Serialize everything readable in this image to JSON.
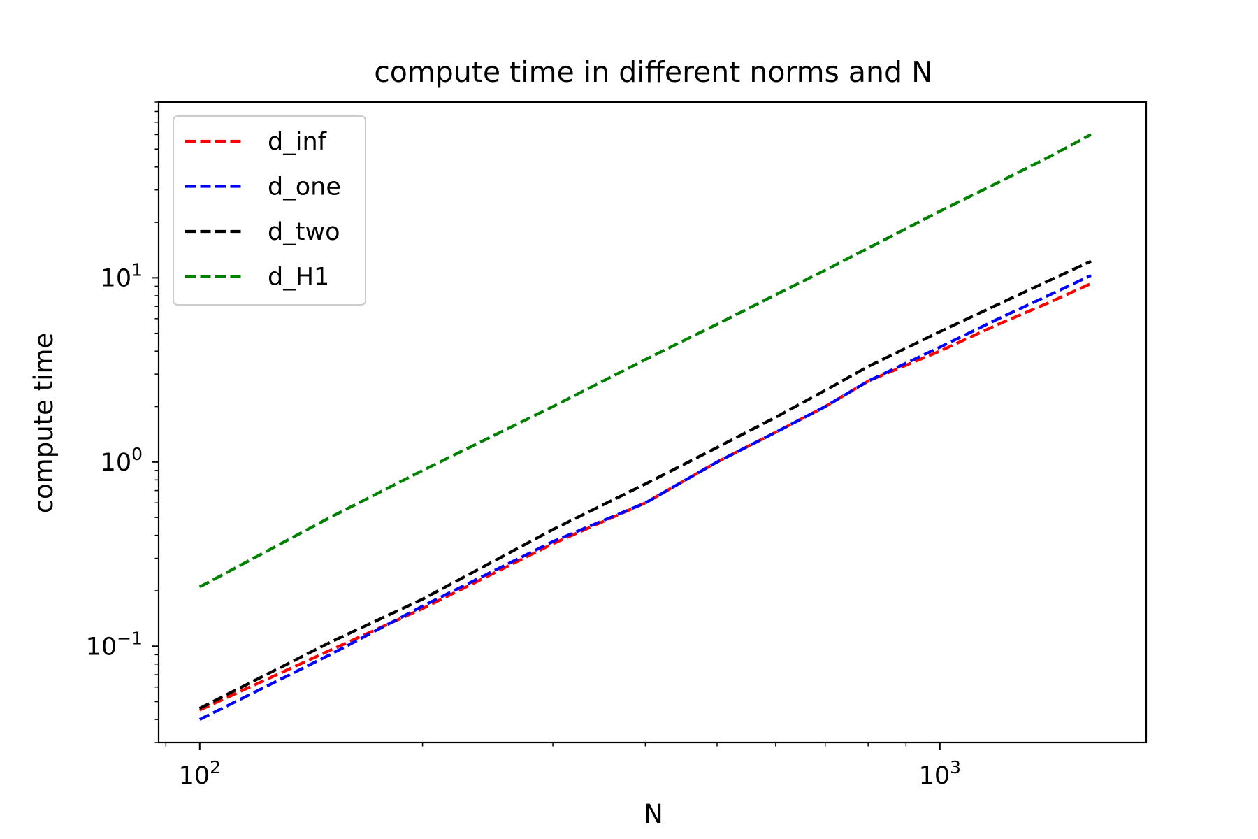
{
  "chart_data": {
    "type": "line",
    "title": "compute time in different norms and N",
    "xlabel": "N",
    "ylabel": "compute time",
    "xscale": "log",
    "yscale": "log",
    "xlim": [
      88,
      1900
    ],
    "ylim": [
      0.03,
      90
    ],
    "grid": false,
    "legend_position": "top-left",
    "x_ticks": [
      {
        "value": 100,
        "base": "10",
        "exp": "2"
      },
      {
        "value": 1000,
        "base": "10",
        "exp": "3"
      }
    ],
    "y_ticks": [
      {
        "value": 0.1,
        "base": "10",
        "exp": "−1"
      },
      {
        "value": 1,
        "base": "10",
        "exp": "0"
      },
      {
        "value": 10,
        "base": "10",
        "exp": "1"
      }
    ],
    "series": [
      {
        "name": "d_inf",
        "color": "#ff0000",
        "x": [
          100,
          150,
          200,
          300,
          400,
          500,
          600,
          700,
          800,
          1000,
          1200,
          1400,
          1600
        ],
        "y": [
          0.045,
          0.095,
          0.16,
          0.36,
          0.6,
          1.0,
          1.45,
          2.0,
          2.75,
          4.0,
          5.6,
          7.3,
          9.3
        ]
      },
      {
        "name": "d_one",
        "color": "#0000ff",
        "x": [
          100,
          150,
          200,
          300,
          400,
          500,
          600,
          700,
          800,
          1000,
          1200,
          1400,
          1600
        ],
        "y": [
          0.04,
          0.09,
          0.165,
          0.37,
          0.6,
          1.0,
          1.45,
          2.0,
          2.75,
          4.2,
          6.0,
          8.0,
          10.3
        ]
      },
      {
        "name": "d_two",
        "color": "#000000",
        "x": [
          100,
          150,
          200,
          300,
          400,
          500,
          600,
          700,
          800,
          1000,
          1200,
          1400,
          1600
        ],
        "y": [
          0.046,
          0.105,
          0.18,
          0.43,
          0.76,
          1.2,
          1.75,
          2.45,
          3.3,
          5.1,
          7.2,
          9.6,
          12.3
        ]
      },
      {
        "name": "d_H1",
        "color": "#008000",
        "x": [
          100,
          150,
          200,
          300,
          400,
          500,
          600,
          700,
          800,
          1000,
          1200,
          1400,
          1600
        ],
        "y": [
          0.21,
          0.5,
          0.9,
          2.0,
          3.6,
          5.6,
          8.1,
          11.0,
          14.5,
          23.0,
          33.0,
          45.0,
          60.0
        ]
      }
    ]
  }
}
